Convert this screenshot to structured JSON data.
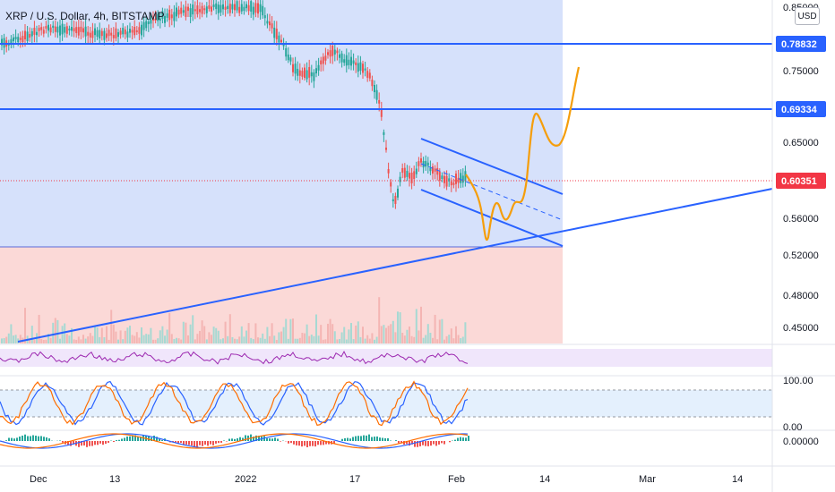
{
  "header": {
    "title": "XRP / U.S. Dollar, 4h, BITSTAMP",
    "currency_button": "USD"
  },
  "price_axis": {
    "ticks": [
      "0.85000",
      "0.75000",
      "0.65000",
      "0.56000",
      "0.52000",
      "0.48000",
      "0.45000"
    ],
    "labels": [
      {
        "value": "0.78832",
        "color": "#2962ff"
      },
      {
        "value": "0.69334",
        "color": "#2962ff"
      },
      {
        "value": "0.60351",
        "color": "#f23645"
      }
    ]
  },
  "indicator_axis": {
    "stoch_ticks": [
      "100.00",
      "0.00"
    ],
    "macd_ticks": [
      "0.00000"
    ]
  },
  "time_axis": {
    "labels": [
      "Dec",
      "13",
      "2022",
      "17",
      "Feb",
      "14",
      "Mar",
      "14"
    ]
  },
  "colors": {
    "up_candle": "#26a69a",
    "down_candle": "#ef5350",
    "trend_lines": "#2962ff",
    "projection": "#f59e0b",
    "zone_blue": "#d6e1fb",
    "zone_red": "#fbd9d7"
  }
}
